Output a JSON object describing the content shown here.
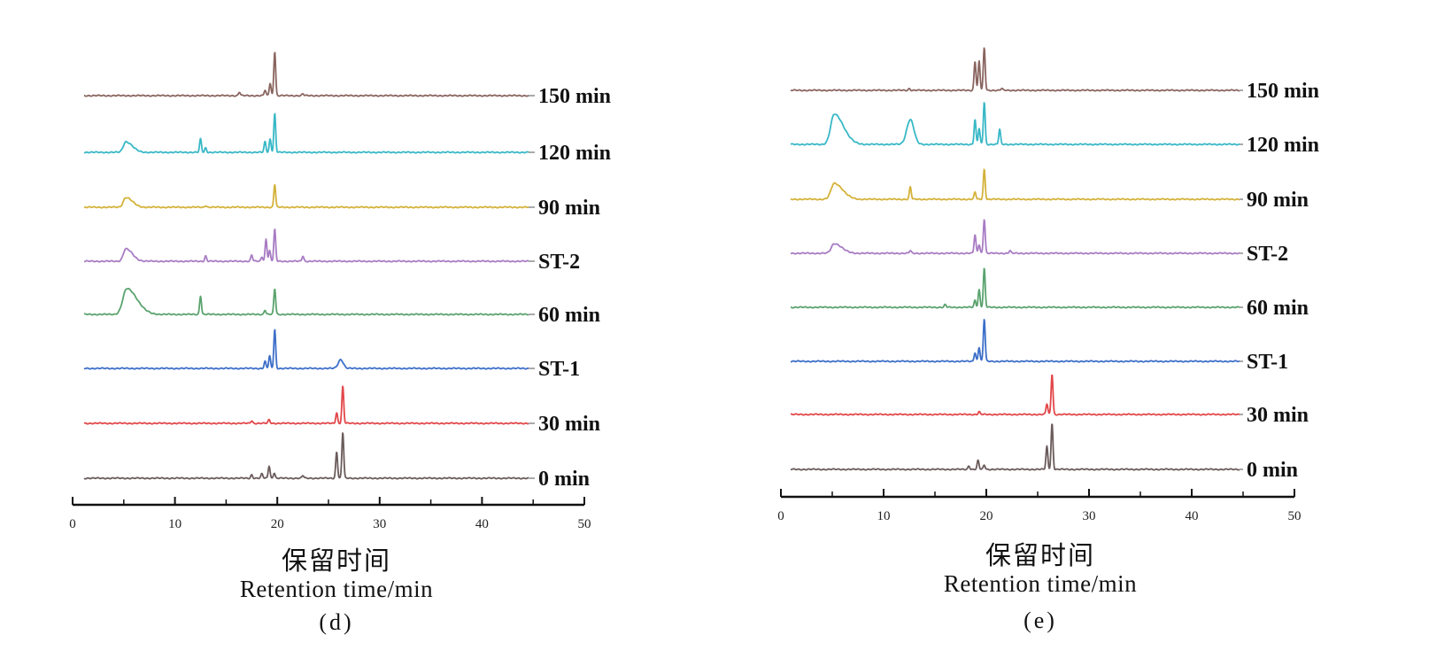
{
  "chart_data": [
    {
      "panel_label": "(d)",
      "type": "line",
      "xlabel_cn": "保留时间",
      "xlabel": "Retention time/min",
      "xlim": [
        0,
        50
      ],
      "xticks": [
        "0",
        "10",
        "20",
        "30",
        "40",
        "50"
      ],
      "grid": false,
      "series": [
        {
          "name": "150 min",
          "color": "#8a6560",
          "peaks": [
            {
              "x": 16.3,
              "h": 4
            },
            {
              "x": 18.8,
              "h": 6
            },
            {
              "x": 19.3,
              "h": 14
            },
            {
              "x": 19.75,
              "h": 50
            },
            {
              "x": 22.5,
              "h": 2
            }
          ]
        },
        {
          "name": "120 min",
          "color": "#38b8c6",
          "peaks": [
            {
              "x": 5.2,
              "h": 12,
              "w": 0.7
            },
            {
              "x": 12.5,
              "h": 15
            },
            {
              "x": 13.0,
              "h": 5
            },
            {
              "x": 18.8,
              "h": 12
            },
            {
              "x": 19.3,
              "h": 15
            },
            {
              "x": 19.75,
              "h": 44
            }
          ]
        },
        {
          "name": "90 min",
          "color": "#d4b23a",
          "peaks": [
            {
              "x": 5.2,
              "h": 11,
              "w": 0.7
            },
            {
              "x": 13.0,
              "h": 2
            },
            {
              "x": 19.75,
              "h": 26
            }
          ]
        },
        {
          "name": "ST-2",
          "color": "#a87cc4",
          "peaks": [
            {
              "x": 5.2,
              "h": 14,
              "w": 0.7
            },
            {
              "x": 13.0,
              "h": 6
            },
            {
              "x": 17.5,
              "h": 7
            },
            {
              "x": 18.5,
              "h": 5
            },
            {
              "x": 18.9,
              "h": 25
            },
            {
              "x": 19.25,
              "h": 12
            },
            {
              "x": 19.75,
              "h": 36
            },
            {
              "x": 22.5,
              "h": 6
            }
          ]
        },
        {
          "name": "60 min",
          "color": "#5aa36e",
          "peaks": [
            {
              "x": 5.3,
              "h": 29,
              "w": 1.1
            },
            {
              "x": 12.5,
              "h": 21
            },
            {
              "x": 18.8,
              "h": 5
            },
            {
              "x": 19.75,
              "h": 29
            }
          ]
        },
        {
          "name": "ST-1",
          "color": "#3d6fc9",
          "peaks": [
            {
              "x": 18.8,
              "h": 8
            },
            {
              "x": 19.25,
              "h": 14
            },
            {
              "x": 19.75,
              "h": 44
            },
            {
              "x": 26.2,
              "h": 10,
              "w": 0.25
            }
          ]
        },
        {
          "name": "30 min",
          "color": "#e2474a",
          "peaks": [
            {
              "x": 17.5,
              "h": 3
            },
            {
              "x": 19.2,
              "h": 4
            },
            {
              "x": 25.8,
              "h": 12
            },
            {
              "x": 26.4,
              "h": 42
            }
          ]
        },
        {
          "name": "0 min",
          "color": "#6b5b5b",
          "peaks": [
            {
              "x": 17.5,
              "h": 4
            },
            {
              "x": 18.5,
              "h": 5
            },
            {
              "x": 19.2,
              "h": 14
            },
            {
              "x": 19.7,
              "h": 6
            },
            {
              "x": 22.5,
              "h": 3
            },
            {
              "x": 25.8,
              "h": 30
            },
            {
              "x": 26.4,
              "h": 52
            }
          ]
        }
      ]
    },
    {
      "panel_label": "(e)",
      "type": "line",
      "xlabel_cn": "保留时间",
      "xlabel": "Retention time/min",
      "xlim": [
        0,
        50
      ],
      "xticks": [
        "0",
        "10",
        "20",
        "30",
        "40",
        "50"
      ],
      "grid": false,
      "series": [
        {
          "name": "150 min",
          "color": "#8a6560",
          "peaks": [
            {
              "x": 12.5,
              "h": 2
            },
            {
              "x": 18.9,
              "h": 33
            },
            {
              "x": 19.3,
              "h": 33
            },
            {
              "x": 19.8,
              "h": 48
            },
            {
              "x": 21.5,
              "h": 2
            }
          ]
        },
        {
          "name": "120 min",
          "color": "#38b8c6",
          "peaks": [
            {
              "x": 5.2,
              "h": 34,
              "w": 1.0
            },
            {
              "x": 12.6,
              "h": 28,
              "w": 0.35
            },
            {
              "x": 18.9,
              "h": 28
            },
            {
              "x": 19.3,
              "h": 18
            },
            {
              "x": 19.8,
              "h": 48
            },
            {
              "x": 21.3,
              "h": 17
            }
          ]
        },
        {
          "name": "90 min",
          "color": "#d4b23a",
          "peaks": [
            {
              "x": 5.2,
              "h": 18,
              "w": 0.9
            },
            {
              "x": 12.6,
              "h": 14
            },
            {
              "x": 18.9,
              "h": 8
            },
            {
              "x": 19.8,
              "h": 34
            }
          ]
        },
        {
          "name": "ST-2",
          "color": "#a87cc4",
          "peaks": [
            {
              "x": 5.2,
              "h": 11,
              "w": 0.8
            },
            {
              "x": 12.6,
              "h": 3
            },
            {
              "x": 18.9,
              "h": 21
            },
            {
              "x": 19.3,
              "h": 10
            },
            {
              "x": 19.8,
              "h": 39
            },
            {
              "x": 22.3,
              "h": 3
            }
          ]
        },
        {
          "name": "60 min",
          "color": "#5aa36e",
          "peaks": [
            {
              "x": 16.0,
              "h": 3
            },
            {
              "x": 18.9,
              "h": 8
            },
            {
              "x": 19.3,
              "h": 20
            },
            {
              "x": 19.8,
              "h": 44
            }
          ]
        },
        {
          "name": "ST-1",
          "color": "#3d6fc9",
          "peaks": [
            {
              "x": 18.9,
              "h": 10
            },
            {
              "x": 19.3,
              "h": 16
            },
            {
              "x": 19.8,
              "h": 48
            }
          ]
        },
        {
          "name": "30 min",
          "color": "#e2474a",
          "peaks": [
            {
              "x": 19.3,
              "h": 3
            },
            {
              "x": 25.9,
              "h": 12
            },
            {
              "x": 26.4,
              "h": 46
            }
          ]
        },
        {
          "name": "0 min",
          "color": "#6b5b5b",
          "peaks": [
            {
              "x": 18.3,
              "h": 4
            },
            {
              "x": 19.2,
              "h": 10
            },
            {
              "x": 19.8,
              "h": 5
            },
            {
              "x": 25.9,
              "h": 26
            },
            {
              "x": 26.4,
              "h": 52
            }
          ]
        }
      ]
    }
  ]
}
